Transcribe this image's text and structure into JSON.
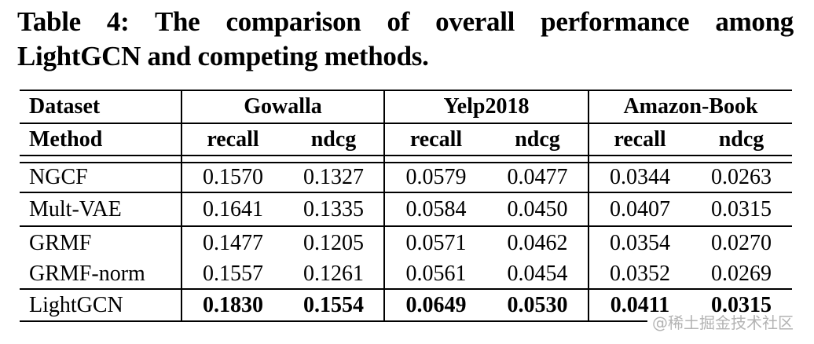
{
  "caption": {
    "label": "Table 4:",
    "full": "Table 4: The comparison of overall performance among LightGCN and competing methods.",
    "line1": "Table 4: The comparison of overall performance among",
    "line2": "LightGCN and competing methods."
  },
  "table": {
    "corner_top": "Dataset",
    "corner_bottom": "Method",
    "groups": [
      {
        "label": "Gowalla",
        "metrics": [
          "recall",
          "ndcg"
        ]
      },
      {
        "label": "Yelp2018",
        "metrics": [
          "recall",
          "ndcg"
        ]
      },
      {
        "label": "Amazon-Book",
        "metrics": [
          "recall",
          "ndcg"
        ]
      }
    ],
    "rows": [
      {
        "method": "NGCF",
        "values": [
          "0.1570",
          "0.1327",
          "0.0579",
          "0.0477",
          "0.0344",
          "0.0263"
        ],
        "values_bold": false
      },
      {
        "method": "Mult-VAE",
        "values": [
          "0.1641",
          "0.1335",
          "0.0584",
          "0.0450",
          "0.0407",
          "0.0315"
        ],
        "values_bold": false
      },
      {
        "method": "GRMF",
        "values": [
          "0.1477",
          "0.1205",
          "0.0571",
          "0.0462",
          "0.0354",
          "0.0270"
        ],
        "values_bold": false
      },
      {
        "method": "GRMF-norm",
        "values": [
          "0.1557",
          "0.1261",
          "0.0561",
          "0.0454",
          "0.0352",
          "0.0269"
        ],
        "values_bold": false
      },
      {
        "method": "LightGCN",
        "values": [
          "0.1830",
          "0.1554",
          "0.0649",
          "0.0530",
          "0.0411",
          "0.0315"
        ],
        "values_bold": true
      }
    ]
  },
  "watermark": {
    "text": "@稀土掘金技术社区",
    "color": "#b3b3b3"
  },
  "colors": {
    "text": "#000000",
    "border": "#000000",
    "background": "#ffffff"
  }
}
